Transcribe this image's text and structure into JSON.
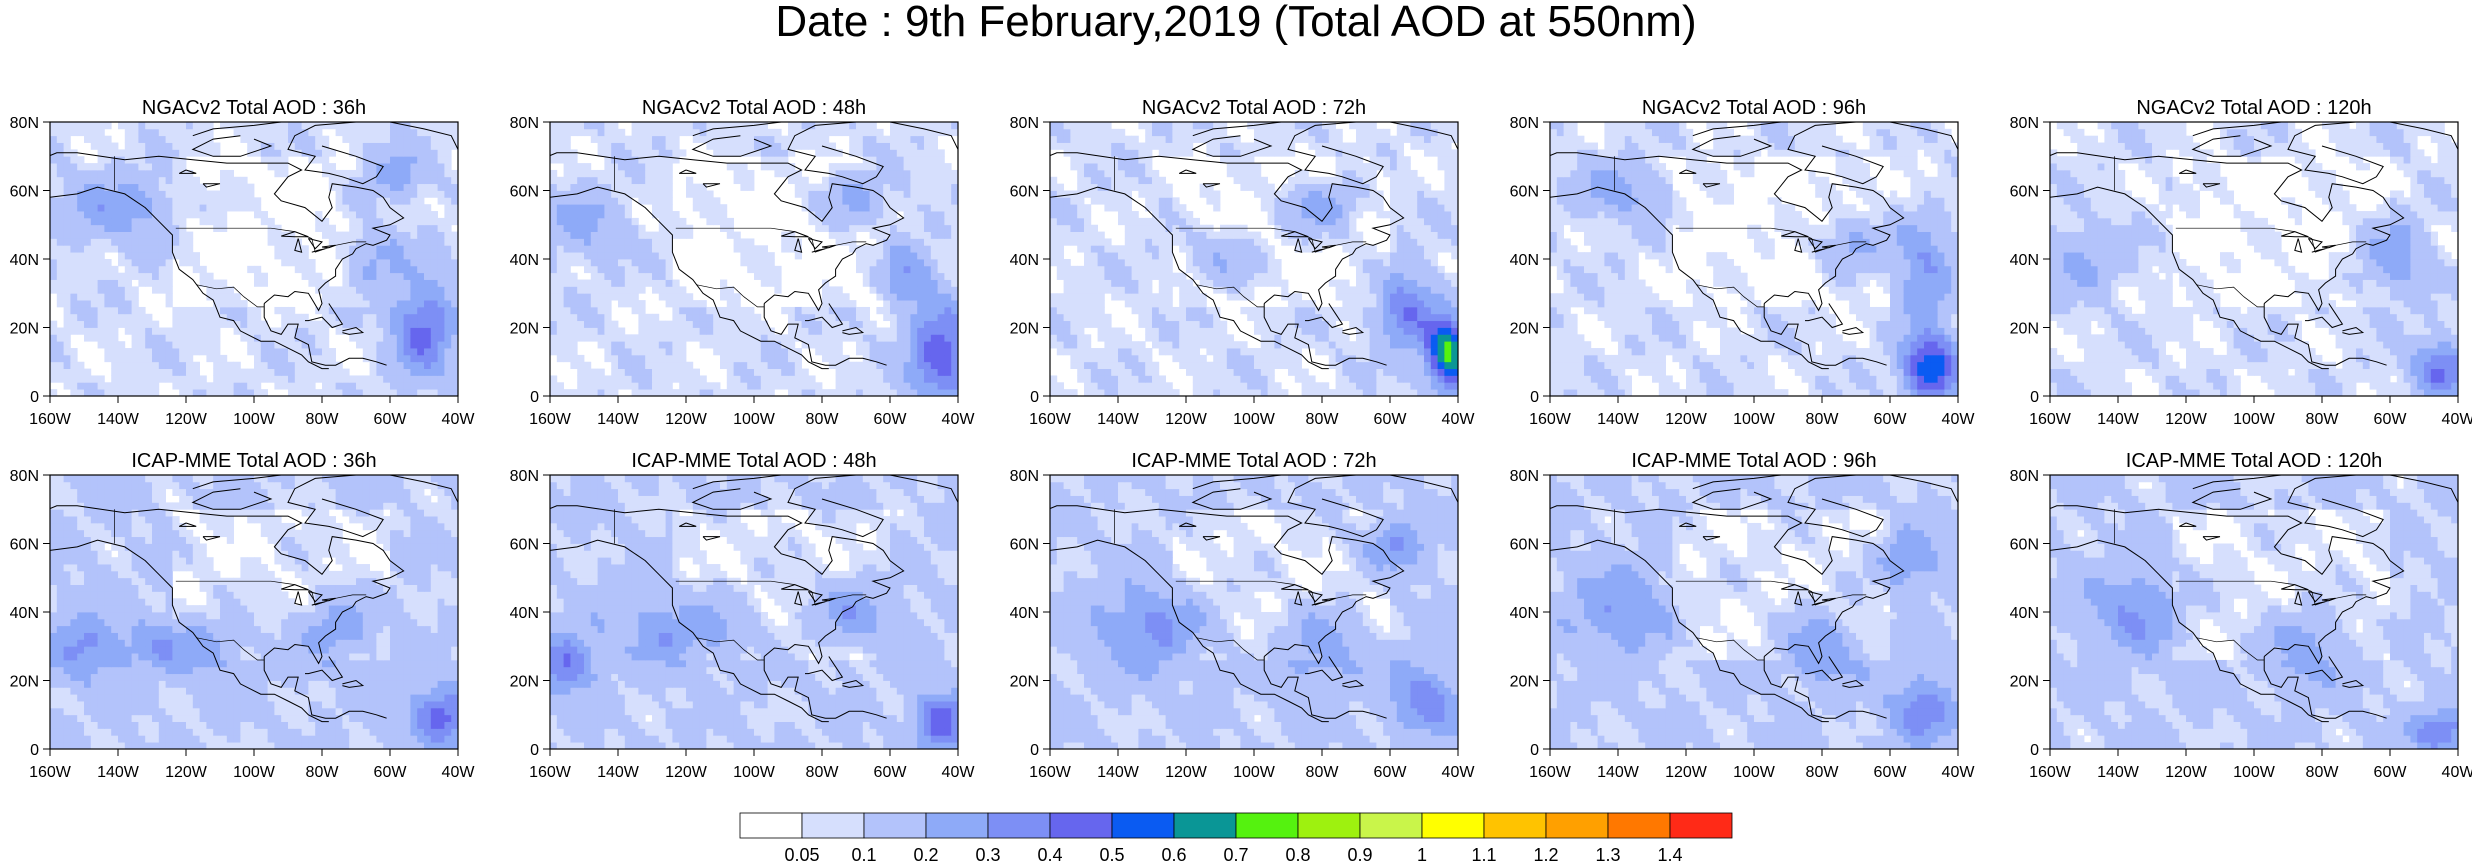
{
  "title": "Date : 9th February,2019 (Total AOD at 550nm)",
  "rows": [
    {
      "model": "NGACv2",
      "panels": [
        {
          "title": "NGACv2 Total AOD : 36h",
          "plumes": [
            [
              -50,
              20,
              9,
              14,
              0.35
            ],
            [
              -65,
              40,
              8,
              10,
              0.2
            ],
            [
              -140,
              55,
              18,
              10,
              0.18
            ],
            [
              -60,
              65,
              10,
              8,
              0.2
            ]
          ]
        },
        {
          "title": "NGACv2 Total AOD : 48h",
          "plumes": [
            [
              -45,
              12,
              9,
              14,
              0.4
            ],
            [
              -55,
              35,
              8,
              10,
              0.2
            ],
            [
              -70,
              58,
              10,
              8,
              0.2
            ],
            [
              -150,
              50,
              12,
              10,
              0.15
            ]
          ]
        },
        {
          "title": "NGACv2 Total AOD : 72h",
          "plumes": [
            [
              -43,
              12,
              6,
              10,
              0.65
            ],
            [
              -55,
              25,
              9,
              12,
              0.3
            ],
            [
              -110,
              40,
              12,
              8,
              0.15
            ],
            [
              -80,
              55,
              12,
              8,
              0.2
            ]
          ]
        },
        {
          "title": "NGACv2 Total AOD : 96h",
          "plumes": [
            [
              -48,
              8,
              8,
              9,
              0.55
            ],
            [
              -50,
              35,
              8,
              14,
              0.25
            ],
            [
              -70,
              45,
              10,
              8,
              0.2
            ],
            [
              -140,
              60,
              12,
              8,
              0.18
            ]
          ]
        },
        {
          "title": "NGACv2 Total AOD : 120h",
          "plumes": [
            [
              -45,
              8,
              8,
              8,
              0.35
            ],
            [
              -60,
              40,
              10,
              12,
              0.2
            ],
            [
              -150,
              40,
              12,
              10,
              0.15
            ]
          ]
        }
      ]
    },
    {
      "model": "ICAP-MME",
      "panels": [
        {
          "title": "ICAP-MME Total AOD : 36h",
          "plumes": [
            [
              -45,
              10,
              9,
              8,
              0.35
            ],
            [
              -150,
              30,
              10,
              10,
              0.2
            ],
            [
              -120,
              30,
              20,
              8,
              0.2
            ],
            [
              -75,
              35,
              12,
              10,
              0.2
            ]
          ]
        },
        {
          "title": "ICAP-MME Total AOD : 48h",
          "plumes": [
            [
              -45,
              8,
              8,
              8,
              0.35
            ],
            [
              -155,
              25,
              8,
              8,
              0.3
            ],
            [
              -120,
              35,
              20,
              10,
              0.2
            ],
            [
              -70,
              40,
              12,
              10,
              0.2
            ]
          ]
        },
        {
          "title": "ICAP-MME Total AOD : 72h",
          "plumes": [
            [
              -50,
              15,
              10,
              10,
              0.25
            ],
            [
              -130,
              35,
              18,
              12,
              0.22
            ],
            [
              -80,
              30,
              12,
              10,
              0.2
            ],
            [
              -60,
              60,
              10,
              8,
              0.2
            ]
          ]
        },
        {
          "title": "ICAP-MME Total AOD : 96h",
          "plumes": [
            [
              -50,
              12,
              10,
              10,
              0.25
            ],
            [
              -140,
              40,
              14,
              12,
              0.2
            ],
            [
              -80,
              30,
              12,
              10,
              0.2
            ],
            [
              -55,
              55,
              10,
              8,
              0.2
            ]
          ]
        },
        {
          "title": "ICAP-MME Total AOD : 120h",
          "plumes": [
            [
              -45,
              5,
              8,
              6,
              0.3
            ],
            [
              -135,
              40,
              14,
              12,
              0.2
            ],
            [
              -85,
              30,
              12,
              10,
              0.2
            ]
          ]
        }
      ]
    }
  ],
  "axes": {
    "lon_ticks": [
      "160W",
      "140W",
      "120W",
      "100W",
      "80W",
      "60W",
      "40W"
    ],
    "lat_ticks": [
      "0",
      "20N",
      "40N",
      "60N",
      "80N"
    ],
    "lon_range": [
      -160,
      -40
    ],
    "lat_range": [
      0,
      80
    ]
  },
  "colorbar": {
    "colors": [
      "#ffffff",
      "#d6dffd",
      "#b3c3fb",
      "#8eaaf8",
      "#7d8ff5",
      "#6666ee",
      "#0a5bf2",
      "#0a9696",
      "#55f20f",
      "#9ef10f",
      "#c9f54a",
      "#ffff00",
      "#ffc300",
      "#ffa000",
      "#ff7800",
      "#ff2a17"
    ],
    "labels": [
      "0.05",
      "0.1",
      "0.2",
      "0.3",
      "0.4",
      "0.5",
      "0.6",
      "0.7",
      "0.8",
      "0.9",
      "1",
      "1.1",
      "1.2",
      "1.3",
      "1.4"
    ],
    "levels": [
      0.05,
      0.1,
      0.2,
      0.3,
      0.4,
      0.5,
      0.6,
      0.7,
      0.8,
      0.9,
      1.0,
      1.1,
      1.2,
      1.3,
      1.4
    ]
  }
}
